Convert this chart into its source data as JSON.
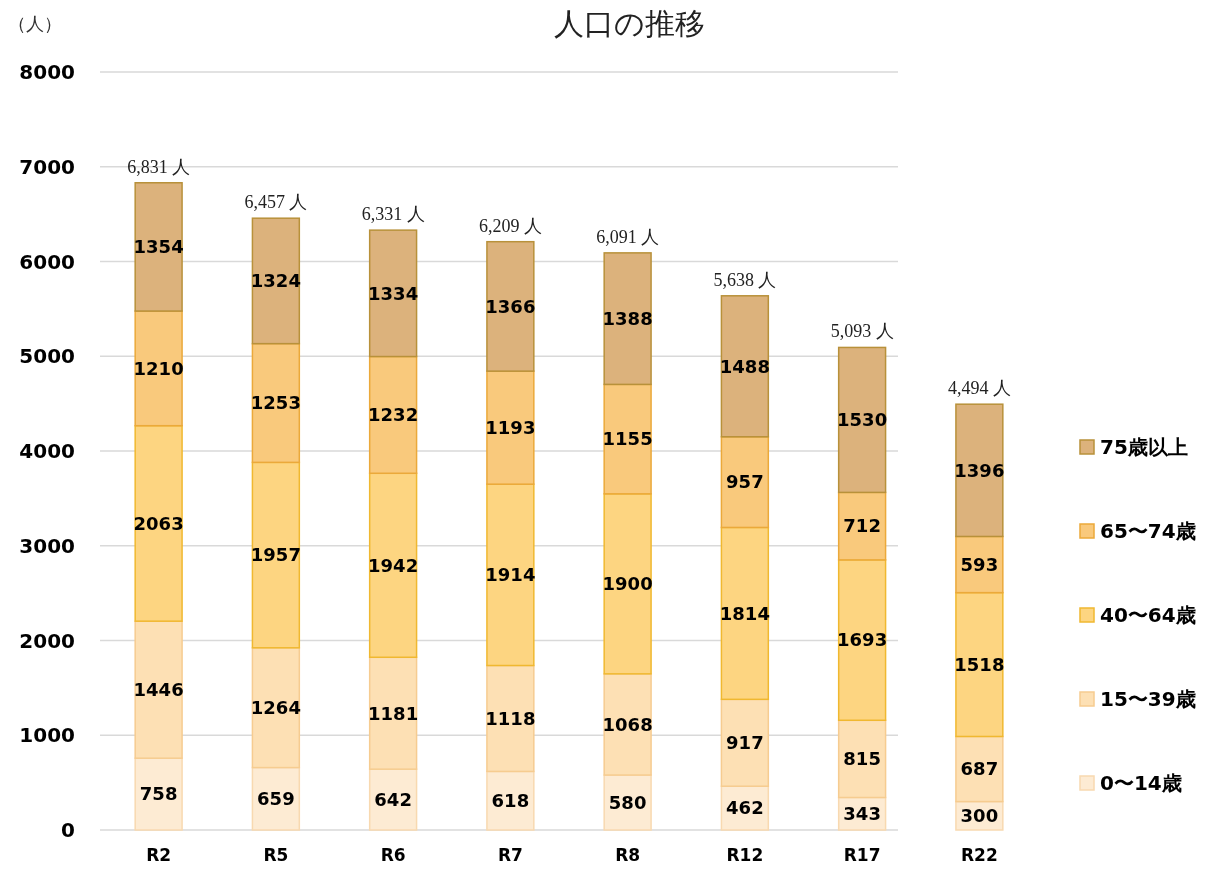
{
  "chart_data": {
    "type": "bar",
    "title": "人口の推移",
    "ylabel": "（人）",
    "stacked": true,
    "data_labels": true,
    "grid": "y",
    "legend": "right",
    "categories": [
      "R2",
      "R5",
      "R6",
      "R7",
      "R8",
      "R12",
      "R17",
      "R22"
    ],
    "ylim": [
      0,
      8000
    ],
    "yticks": [
      0,
      1000,
      2000,
      3000,
      4000,
      5000,
      6000,
      7000,
      8000
    ],
    "series": [
      {
        "name": "0〜14歳",
        "color": "#fdebd3",
        "values": [
          758,
          659,
          642,
          618,
          580,
          462,
          343,
          300
        ]
      },
      {
        "name": "15〜39歳",
        "color": "#fde0b4",
        "values": [
          1446,
          1264,
          1181,
          1118,
          1068,
          917,
          815,
          687
        ]
      },
      {
        "name": "40〜64歳",
        "color": "#fdd581",
        "values": [
          2063,
          1957,
          1942,
          1914,
          1900,
          1814,
          1693,
          1518
        ]
      },
      {
        "name": "65〜74歳",
        "color": "#f9c97c",
        "values": [
          1210,
          1253,
          1232,
          1193,
          1155,
          957,
          712,
          593
        ]
      },
      {
        "name": "75歳以上",
        "color": "#dcb27c",
        "values": [
          1354,
          1324,
          1334,
          1366,
          1388,
          1488,
          1530,
          1396
        ]
      }
    ],
    "totals": [
      "6,831 人",
      "6,457 人",
      "6,331 人",
      "6,209 人",
      "6,091 人",
      "5,638 人",
      "5,093 人",
      "4,494 人"
    ]
  }
}
